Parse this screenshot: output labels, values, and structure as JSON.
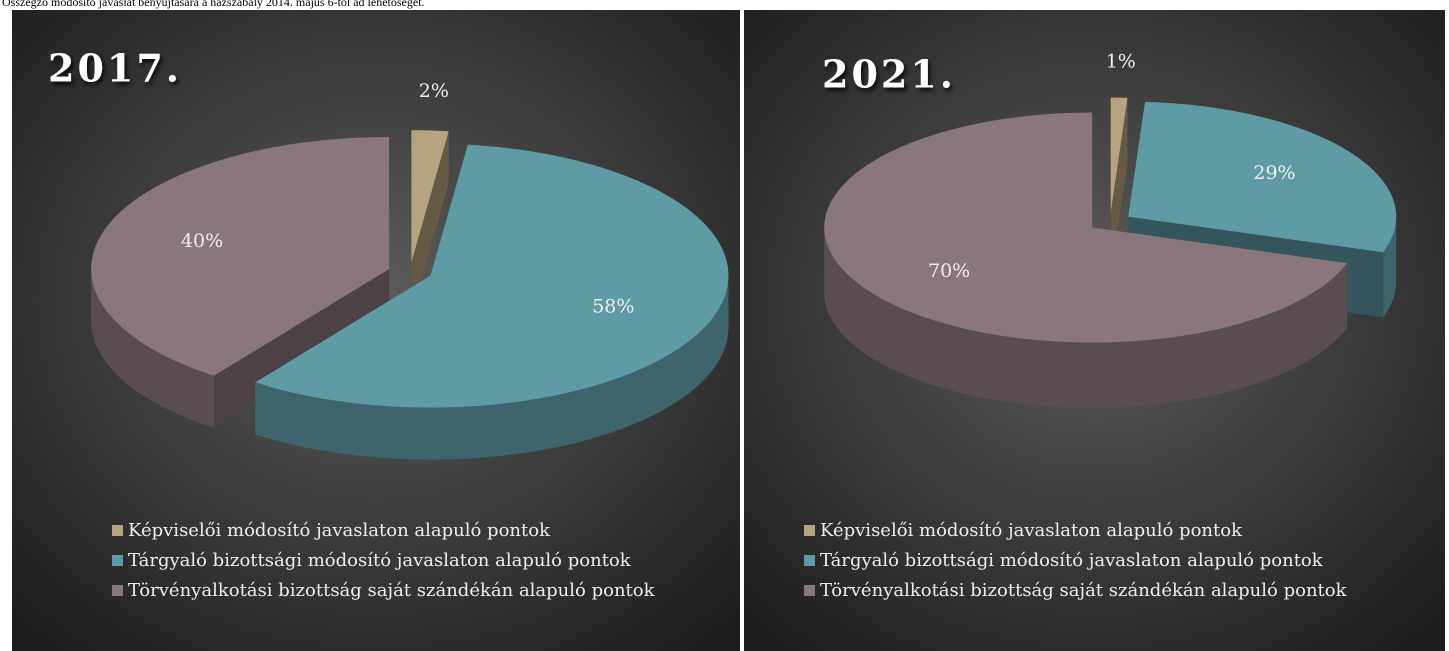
{
  "caption": "Összegző módosító javaslat benyújtására a házszabály 2014. május 6-tól ad lehetőséget.",
  "chart_data": [
    {
      "type": "pie",
      "title": "2017.",
      "categories": [
        "Képviselői módosító javaslaton alapuló pontok",
        "Tárgyaló bizottsági módosító javaslaton alapuló pontok",
        "Törvényalkotási bizottság saját szándékán alapuló pontok"
      ],
      "values": [
        2,
        58,
        40
      ],
      "value_labels": [
        "2%",
        "58%",
        "40%"
      ],
      "colors": [
        "#b5a47f",
        "#5f9ba5",
        "#8a777e"
      ]
    },
    {
      "type": "pie",
      "title": "2021.",
      "categories": [
        "Képviselői módosító javaslaton alapuló pontok",
        "Tárgyaló bizottsági módosító javaslaton alapuló pontok",
        "Törvényalkotási bizottság saját szándékán alapuló pontok"
      ],
      "values": [
        1,
        29,
        70
      ],
      "value_labels": [
        "1%",
        "29%",
        "70%"
      ],
      "colors": [
        "#b5a47f",
        "#5f9ba5",
        "#8a777e"
      ]
    }
  ]
}
